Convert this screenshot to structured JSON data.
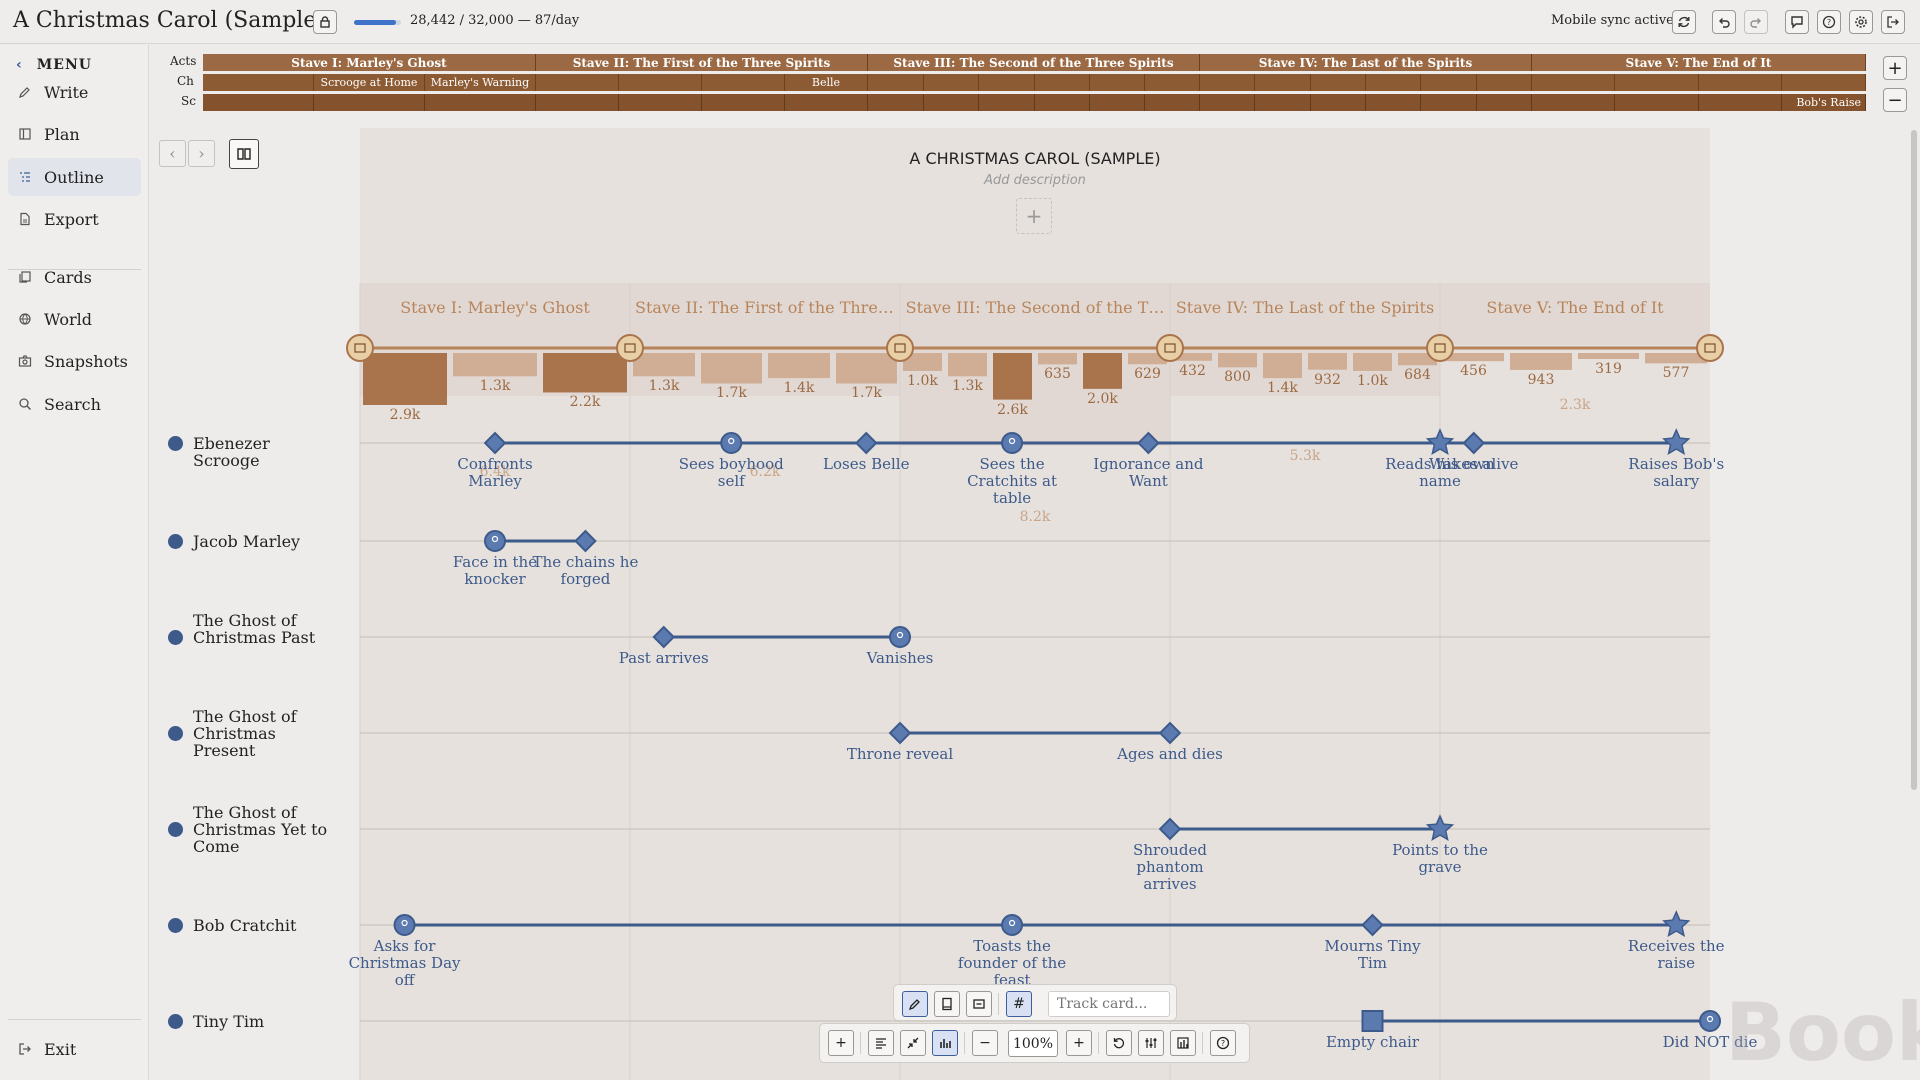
{
  "app": {
    "doc_title": "A Christmas Carol (Sample)",
    "progress_text": "28,442 / 32,000 — 87/day",
    "progress_fraction": 0.89,
    "sync_text": "Mobile sync active"
  },
  "sidebar": {
    "menu_label": "MENU",
    "items": [
      {
        "label": "Write",
        "icon": "pencil-icon"
      },
      {
        "label": "Plan",
        "icon": "board-icon"
      },
      {
        "label": "Outline",
        "icon": "outline-icon",
        "active": true
      },
      {
        "label": "Export",
        "icon": "document-icon"
      },
      {
        "label": "Cards",
        "icon": "cards-icon"
      },
      {
        "label": "World",
        "icon": "globe-icon"
      },
      {
        "label": "Snapshots",
        "icon": "camera-icon"
      },
      {
        "label": "Search",
        "icon": "search-icon"
      }
    ],
    "exit_label": "Exit"
  },
  "strip": {
    "labels": {
      "acts": "Acts",
      "chapters": "Ch",
      "scenes": "Sc"
    },
    "acts": [
      "Stave I: Marley's Ghost",
      "Stave II: The First of the Three Spirits",
      "Stave III: The Second of the Three Spirits",
      "Stave IV: The Last of the Spirits",
      "Stave V: The End of It"
    ],
    "chapters": [
      "",
      "Scrooge at Home",
      "Marley's Warning",
      "",
      "",
      "",
      "Belle",
      "",
      "",
      "",
      "",
      "",
      "",
      "",
      "",
      "",
      "",
      "",
      "",
      ""
    ],
    "scene_last_label": "Bob's Raise"
  },
  "outline": {
    "title": "A CHRISTMAS CAROL (SAMPLE)",
    "description_placeholder": "Add description",
    "act_titles": [
      "Stave I: Marley's Ghost",
      "Stave II: The First of the Three…",
      "Stave III: The Second of the T…",
      "Stave IV: The Last of the Spirits",
      "Stave V: The End of It"
    ],
    "act_totals": [
      "6.4k",
      "6.2k",
      "8.2k",
      "5.3k",
      "2.3k"
    ],
    "chapter_word_counts": [
      "2.9k",
      "1.3k",
      "2.2k",
      "1.3k",
      "1.7k",
      "1.4k",
      "1.7k",
      "1.0k",
      "1.3k",
      "2.6k",
      "635",
      "2.0k",
      "629",
      "432",
      "800",
      "1.4k",
      "932",
      "1.0k",
      "684",
      "456",
      "943",
      "319",
      "577"
    ],
    "characters": [
      {
        "name": "Ebenezer Scrooge",
        "events": [
          {
            "label": "Confronts Marley",
            "shape": "diamond",
            "x": 0.1
          },
          {
            "label": "Sees boyhood self",
            "shape": "circle",
            "x": 0.275
          },
          {
            "label": "Loses Belle",
            "shape": "diamond",
            "x": 0.375
          },
          {
            "label": "Sees the Cratchits at table",
            "shape": "circle",
            "x": 0.483
          },
          {
            "label": "Ignorance and Want",
            "shape": "diamond",
            "x": 0.584
          },
          {
            "label": "Reads his own name",
            "shape": "star",
            "x": 0.8
          },
          {
            "label": "Wakes alive",
            "shape": "diamond",
            "x": 0.825
          },
          {
            "label": "Raises Bob's salary",
            "shape": "star",
            "x": 0.975
          }
        ]
      },
      {
        "name": "Jacob Marley",
        "events": [
          {
            "label": "Face in the knocker",
            "shape": "circle",
            "x": 0.1
          },
          {
            "label": "The chains he forged",
            "shape": "diamond",
            "x": 0.167
          }
        ]
      },
      {
        "name": "The Ghost of Christmas Past",
        "events": [
          {
            "label": "Past arrives",
            "shape": "diamond",
            "x": 0.225
          },
          {
            "label": "Vanishes",
            "shape": "circle",
            "x": 0.4
          }
        ]
      },
      {
        "name": "The Ghost of Christmas Present",
        "events": [
          {
            "label": "Throne reveal",
            "shape": "diamond",
            "x": 0.4
          },
          {
            "label": "Ages and dies",
            "shape": "diamond",
            "x": 0.6
          }
        ]
      },
      {
        "name": "The Ghost of Christmas Yet to Come",
        "events": [
          {
            "label": "Shrouded phantom arrives",
            "shape": "diamond",
            "x": 0.6
          },
          {
            "label": "Points to the grave",
            "shape": "star",
            "x": 0.8
          }
        ]
      },
      {
        "name": "Bob Cratchit",
        "events": [
          {
            "label": "Asks for Christmas Day off",
            "shape": "circle",
            "x": 0.033
          },
          {
            "label": "Toasts the founder of the feast",
            "shape": "circle",
            "x": 0.483
          },
          {
            "label": "Mourns Tiny Tim",
            "shape": "diamond",
            "x": 0.75
          },
          {
            "label": "Receives the raise",
            "shape": "star",
            "x": 0.975
          }
        ]
      },
      {
        "name": "Tiny Tim",
        "events": [
          {
            "label": "Empty chair",
            "shape": "square",
            "x": 0.75
          },
          {
            "label": "Did NOT die",
            "shape": "circle",
            "x": 1.0
          }
        ]
      }
    ]
  },
  "toolbar": {
    "track_placeholder": "Track card...",
    "zoom_value": "100%",
    "watermark": "Book"
  },
  "colors": {
    "act_brown": "#9b6a44",
    "chapter_brown": "#8c5a33",
    "scene_brown": "#84522c",
    "accent_blue": "#3d5a8a",
    "word_count_text": "#9c6a42"
  }
}
